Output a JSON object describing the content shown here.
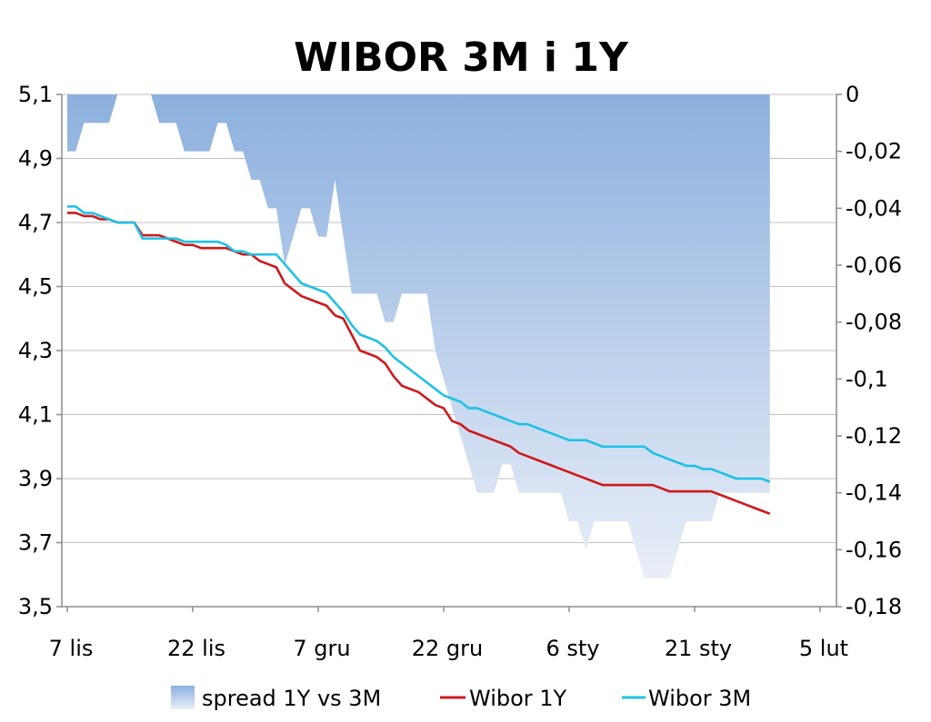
{
  "chart_data": {
    "type": "line",
    "title": "WIBOR 3M i 1Y",
    "xlabel": "",
    "ylabel": "",
    "x_ticks": [
      "7 lis",
      "22 lis",
      "7 gru",
      "22 gru",
      "6 sty",
      "21 sty",
      "5 lut"
    ],
    "x_tick_days": [
      0,
      15,
      30,
      45,
      60,
      75,
      90
    ],
    "y_left_ticks": [
      "5,1",
      "4,9",
      "4,7",
      "4,5",
      "4,3",
      "4,1",
      "3,9",
      "3,7",
      "3,5"
    ],
    "y_right_ticks": [
      "0",
      "-0,02",
      "-0,04",
      "-0,06",
      "-0,08",
      "-0,1",
      "-0,12",
      "-0,14",
      "-0,16",
      "-0,18"
    ],
    "ylim_left": [
      3.5,
      5.1
    ],
    "ylim_right": [
      -0.18,
      0
    ],
    "legend_position": "bottom",
    "colors": {
      "wibor_1y": "#cc1a1a",
      "wibor_3m": "#1ec1e6",
      "spread_top": "#8cb0de",
      "spread_bottom": "#e9eef8",
      "grid": "#bfbfbf",
      "axis": "#8c8c8c"
    },
    "series": [
      {
        "name": "Wibor 1Y",
        "axis": "left",
        "type": "line",
        "points": [
          [
            0,
            4.73
          ],
          [
            1,
            4.73
          ],
          [
            2,
            4.72
          ],
          [
            3,
            4.72
          ],
          [
            4,
            4.71
          ],
          [
            5,
            4.71
          ],
          [
            6,
            4.7
          ],
          [
            7,
            4.7
          ],
          [
            8,
            4.7
          ],
          [
            9,
            4.66
          ],
          [
            10,
            4.66
          ],
          [
            11,
            4.66
          ],
          [
            12,
            4.65
          ],
          [
            13,
            4.64
          ],
          [
            14,
            4.63
          ],
          [
            15,
            4.63
          ],
          [
            16,
            4.62
          ],
          [
            17,
            4.62
          ],
          [
            18,
            4.62
          ],
          [
            19,
            4.62
          ],
          [
            20,
            4.61
          ],
          [
            21,
            4.6
          ],
          [
            22,
            4.6
          ],
          [
            23,
            4.58
          ],
          [
            24,
            4.57
          ],
          [
            25,
            4.56
          ],
          [
            26,
            4.51
          ],
          [
            27,
            4.49
          ],
          [
            28,
            4.47
          ],
          [
            29,
            4.46
          ],
          [
            30,
            4.45
          ],
          [
            31,
            4.44
          ],
          [
            32,
            4.41
          ],
          [
            33,
            4.4
          ],
          [
            34,
            4.35
          ],
          [
            35,
            4.3
          ],
          [
            36,
            4.29
          ],
          [
            37,
            4.28
          ],
          [
            38,
            4.26
          ],
          [
            39,
            4.22
          ],
          [
            40,
            4.19
          ],
          [
            41,
            4.18
          ],
          [
            42,
            4.17
          ],
          [
            43,
            4.15
          ],
          [
            44,
            4.13
          ],
          [
            45,
            4.12
          ],
          [
            46,
            4.08
          ],
          [
            47,
            4.07
          ],
          [
            48,
            4.05
          ],
          [
            49,
            4.04
          ],
          [
            50,
            4.03
          ],
          [
            51,
            4.02
          ],
          [
            52,
            4.01
          ],
          [
            53,
            4.0
          ],
          [
            54,
            3.98
          ],
          [
            55,
            3.97
          ],
          [
            56,
            3.96
          ],
          [
            57,
            3.95
          ],
          [
            58,
            3.94
          ],
          [
            59,
            3.93
          ],
          [
            60,
            3.92
          ],
          [
            61,
            3.91
          ],
          [
            62,
            3.9
          ],
          [
            63,
            3.89
          ],
          [
            64,
            3.88
          ],
          [
            65,
            3.88
          ],
          [
            66,
            3.88
          ],
          [
            67,
            3.88
          ],
          [
            68,
            3.88
          ],
          [
            69,
            3.88
          ],
          [
            70,
            3.88
          ],
          [
            71,
            3.87
          ],
          [
            72,
            3.86
          ],
          [
            73,
            3.86
          ],
          [
            74,
            3.86
          ],
          [
            75,
            3.86
          ],
          [
            76,
            3.86
          ],
          [
            77,
            3.86
          ],
          [
            78,
            3.85
          ],
          [
            79,
            3.84
          ],
          [
            80,
            3.83
          ],
          [
            81,
            3.82
          ],
          [
            82,
            3.81
          ],
          [
            83,
            3.8
          ],
          [
            84,
            3.79
          ]
        ]
      },
      {
        "name": "Wibor 3M",
        "axis": "left",
        "type": "line",
        "points": [
          [
            0,
            4.75
          ],
          [
            1,
            4.75
          ],
          [
            2,
            4.73
          ],
          [
            3,
            4.73
          ],
          [
            4,
            4.72
          ],
          [
            5,
            4.71
          ],
          [
            6,
            4.7
          ],
          [
            7,
            4.7
          ],
          [
            8,
            4.7
          ],
          [
            9,
            4.65
          ],
          [
            10,
            4.65
          ],
          [
            11,
            4.65
          ],
          [
            12,
            4.65
          ],
          [
            13,
            4.65
          ],
          [
            14,
            4.64
          ],
          [
            15,
            4.64
          ],
          [
            16,
            4.64
          ],
          [
            17,
            4.64
          ],
          [
            18,
            4.64
          ],
          [
            19,
            4.63
          ],
          [
            20,
            4.61
          ],
          [
            21,
            4.61
          ],
          [
            22,
            4.6
          ],
          [
            23,
            4.6
          ],
          [
            24,
            4.6
          ],
          [
            25,
            4.6
          ],
          [
            26,
            4.57
          ],
          [
            27,
            4.54
          ],
          [
            28,
            4.51
          ],
          [
            29,
            4.5
          ],
          [
            30,
            4.49
          ],
          [
            31,
            4.48
          ],
          [
            32,
            4.45
          ],
          [
            33,
            4.42
          ],
          [
            34,
            4.38
          ],
          [
            35,
            4.35
          ],
          [
            36,
            4.34
          ],
          [
            37,
            4.33
          ],
          [
            38,
            4.31
          ],
          [
            39,
            4.28
          ],
          [
            40,
            4.26
          ],
          [
            41,
            4.24
          ],
          [
            42,
            4.22
          ],
          [
            43,
            4.2
          ],
          [
            44,
            4.18
          ],
          [
            45,
            4.16
          ],
          [
            46,
            4.15
          ],
          [
            47,
            4.14
          ],
          [
            48,
            4.12
          ],
          [
            49,
            4.12
          ],
          [
            50,
            4.11
          ],
          [
            51,
            4.1
          ],
          [
            52,
            4.09
          ],
          [
            53,
            4.08
          ],
          [
            54,
            4.07
          ],
          [
            55,
            4.07
          ],
          [
            56,
            4.06
          ],
          [
            57,
            4.05
          ],
          [
            58,
            4.04
          ],
          [
            59,
            4.03
          ],
          [
            60,
            4.02
          ],
          [
            61,
            4.02
          ],
          [
            62,
            4.02
          ],
          [
            63,
            4.01
          ],
          [
            64,
            4.0
          ],
          [
            65,
            4.0
          ],
          [
            66,
            4.0
          ],
          [
            67,
            4.0
          ],
          [
            68,
            4.0
          ],
          [
            69,
            4.0
          ],
          [
            70,
            3.98
          ],
          [
            71,
            3.97
          ],
          [
            72,
            3.96
          ],
          [
            73,
            3.95
          ],
          [
            74,
            3.94
          ],
          [
            75,
            3.94
          ],
          [
            76,
            3.93
          ],
          [
            77,
            3.93
          ],
          [
            78,
            3.92
          ],
          [
            79,
            3.91
          ],
          [
            80,
            3.9
          ],
          [
            81,
            3.9
          ],
          [
            82,
            3.9
          ],
          [
            83,
            3.9
          ],
          [
            84,
            3.89
          ]
        ]
      },
      {
        "name": "spread 1Y vs 3M",
        "axis": "right",
        "type": "area",
        "points": [
          [
            0,
            -0.02
          ],
          [
            1,
            -0.02
          ],
          [
            2,
            -0.01
          ],
          [
            3,
            -0.01
          ],
          [
            4,
            -0.01
          ],
          [
            5,
            -0.01
          ],
          [
            6,
            0.0
          ],
          [
            7,
            0.0
          ],
          [
            8,
            0.0
          ],
          [
            9,
            0.0
          ],
          [
            10,
            0.0
          ],
          [
            11,
            -0.01
          ],
          [
            12,
            -0.01
          ],
          [
            13,
            -0.01
          ],
          [
            14,
            -0.02
          ],
          [
            15,
            -0.02
          ],
          [
            16,
            -0.02
          ],
          [
            17,
            -0.02
          ],
          [
            18,
            -0.01
          ],
          [
            19,
            -0.01
          ],
          [
            20,
            -0.02
          ],
          [
            21,
            -0.02
          ],
          [
            22,
            -0.03
          ],
          [
            23,
            -0.03
          ],
          [
            24,
            -0.04
          ],
          [
            25,
            -0.04
          ],
          [
            26,
            -0.06
          ],
          [
            27,
            -0.05
          ],
          [
            28,
            -0.04
          ],
          [
            29,
            -0.04
          ],
          [
            30,
            -0.05
          ],
          [
            31,
            -0.05
          ],
          [
            32,
            -0.03
          ],
          [
            33,
            -0.05
          ],
          [
            34,
            -0.07
          ],
          [
            35,
            -0.07
          ],
          [
            36,
            -0.07
          ],
          [
            37,
            -0.07
          ],
          [
            38,
            -0.08
          ],
          [
            39,
            -0.08
          ],
          [
            40,
            -0.07
          ],
          [
            41,
            -0.07
          ],
          [
            42,
            -0.07
          ],
          [
            43,
            -0.07
          ],
          [
            44,
            -0.09
          ],
          [
            45,
            -0.1
          ],
          [
            46,
            -0.11
          ],
          [
            47,
            -0.12
          ],
          [
            48,
            -0.13
          ],
          [
            49,
            -0.14
          ],
          [
            50,
            -0.14
          ],
          [
            51,
            -0.14
          ],
          [
            52,
            -0.13
          ],
          [
            53,
            -0.13
          ],
          [
            54,
            -0.14
          ],
          [
            55,
            -0.14
          ],
          [
            56,
            -0.14
          ],
          [
            57,
            -0.14
          ],
          [
            58,
            -0.14
          ],
          [
            59,
            -0.14
          ],
          [
            60,
            -0.15
          ],
          [
            61,
            -0.15
          ],
          [
            62,
            -0.16
          ],
          [
            63,
            -0.15
          ],
          [
            64,
            -0.15
          ],
          [
            65,
            -0.15
          ],
          [
            66,
            -0.15
          ],
          [
            67,
            -0.15
          ],
          [
            68,
            -0.16
          ],
          [
            69,
            -0.17
          ],
          [
            70,
            -0.17
          ],
          [
            71,
            -0.17
          ],
          [
            72,
            -0.17
          ],
          [
            73,
            -0.16
          ],
          [
            74,
            -0.15
          ],
          [
            75,
            -0.15
          ],
          [
            76,
            -0.15
          ],
          [
            77,
            -0.15
          ],
          [
            78,
            -0.14
          ],
          [
            79,
            -0.14
          ],
          [
            80,
            -0.14
          ],
          [
            81,
            -0.14
          ],
          [
            82,
            -0.14
          ],
          [
            83,
            -0.14
          ],
          [
            84,
            -0.14
          ]
        ]
      }
    ]
  }
}
